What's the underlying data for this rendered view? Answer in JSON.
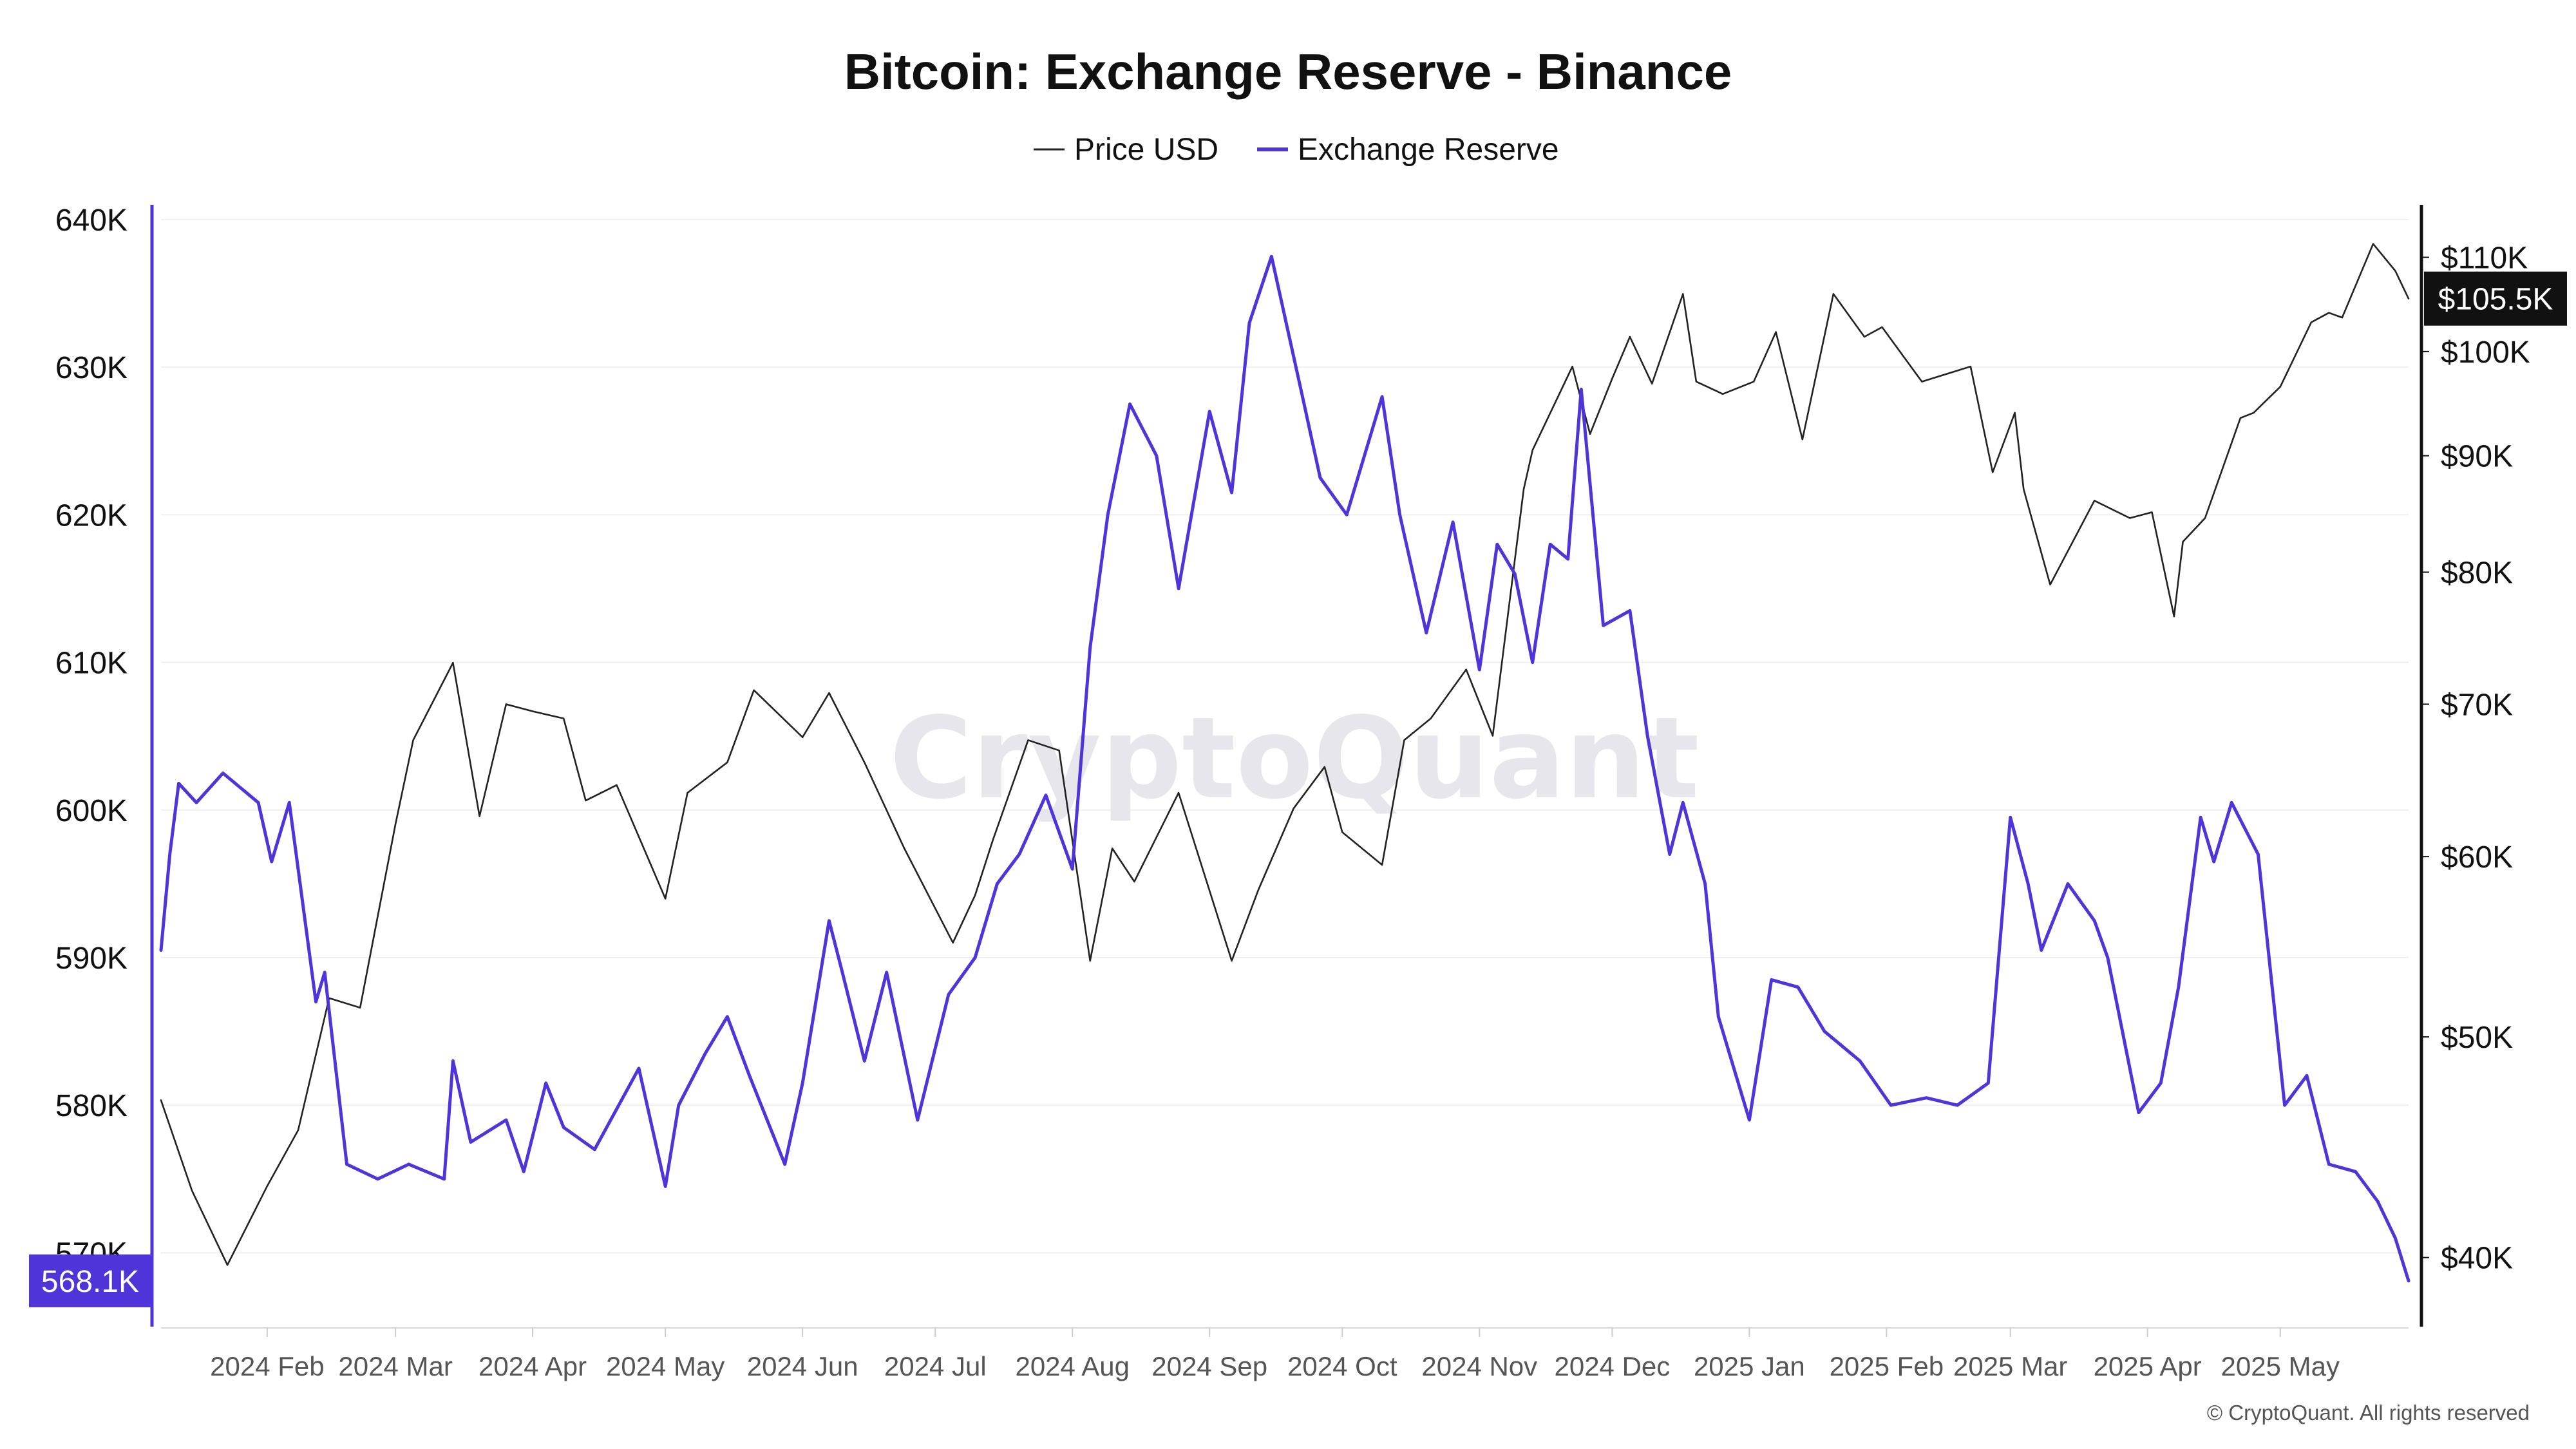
{
  "chart_data": {
    "type": "line",
    "title": "Bitcoin: Exchange Reserve - Binance",
    "watermark": "CryptoQuant",
    "copyright": "© CryptoQuant. All rights reserved",
    "legend": [
      {
        "name": "Price USD",
        "color": "#222222"
      },
      {
        "name": "Exchange Reserve",
        "color": "#4F35D9"
      }
    ],
    "legend_position": "top-center",
    "grid": true,
    "x_ticks": [
      "2024 Feb",
      "2024 Mar",
      "2024 Apr",
      "2024 May",
      "2024 Jun",
      "2024 Jul",
      "2024 Aug",
      "2024 Sep",
      "2024 Oct",
      "2024 Nov",
      "2024 Dec",
      "2025 Jan",
      "2025 Feb",
      "2025 Mar",
      "2025 Apr",
      "2025 May"
    ],
    "x_range": [
      "2024-01-08",
      "2025-05-30"
    ],
    "y_left": {
      "label": "",
      "ticks": [
        "570K",
        "580K",
        "590K",
        "600K",
        "610K",
        "620K",
        "630K",
        "640K"
      ],
      "tick_values": [
        570000,
        580000,
        590000,
        600000,
        610000,
        620000,
        630000,
        640000
      ],
      "range": [
        565000,
        641000
      ],
      "current_label": "568.1K",
      "current_value": 568100
    },
    "y_right": {
      "label": "",
      "scale": "log",
      "ticks": [
        "$40K",
        "$50K",
        "$60K",
        "$70K",
        "$80K",
        "$90K",
        "$100K",
        "$110K"
      ],
      "tick_values": [
        40000,
        50000,
        60000,
        70000,
        80000,
        90000,
        100000,
        110000
      ],
      "range": [
        37300,
        116000
      ],
      "current_label": "$105.5K",
      "current_value": 105500
    },
    "series": [
      {
        "name": "Price USD",
        "axis": "right",
        "color": "#222222",
        "x": [
          "2024-01-08",
          "2024-01-15",
          "2024-01-23",
          "2024-02-01",
          "2024-02-08",
          "2024-02-15",
          "2024-02-22",
          "2024-03-01",
          "2024-03-05",
          "2024-03-14",
          "2024-03-20",
          "2024-03-26",
          "2024-04-01",
          "2024-04-08",
          "2024-04-13",
          "2024-04-20",
          "2024-05-01",
          "2024-05-06",
          "2024-05-15",
          "2024-05-21",
          "2024-06-01",
          "2024-06-07",
          "2024-06-15",
          "2024-06-24",
          "2024-07-05",
          "2024-07-10",
          "2024-07-14",
          "2024-07-22",
          "2024-07-29",
          "2024-08-05",
          "2024-08-10",
          "2024-08-15",
          "2024-08-25",
          "2024-09-06",
          "2024-09-12",
          "2024-09-20",
          "2024-09-27",
          "2024-10-01",
          "2024-10-10",
          "2024-10-15",
          "2024-10-21",
          "2024-10-29",
          "2024-11-04",
          "2024-11-11",
          "2024-11-13",
          "2024-11-22",
          "2024-11-26",
          "2024-12-01",
          "2024-12-05",
          "2024-12-10",
          "2024-12-17",
          "2024-12-20",
          "2024-12-26",
          "2025-01-02",
          "2025-01-07",
          "2025-01-13",
          "2025-01-20",
          "2025-01-27",
          "2025-01-31",
          "2025-02-09",
          "2025-02-20",
          "2025-02-25",
          "2025-03-02",
          "2025-03-04",
          "2025-03-10",
          "2025-03-20",
          "2025-03-28",
          "2025-04-02",
          "2025-04-07",
          "2025-04-09",
          "2025-04-14",
          "2025-04-22",
          "2025-04-25",
          "2025-05-01",
          "2025-05-08",
          "2025-05-12",
          "2025-05-15",
          "2025-05-22",
          "2025-05-27",
          "2025-05-30"
        ],
        "values": [
          46900,
          42800,
          39700,
          43000,
          45500,
          52000,
          51500,
          62000,
          67500,
          73000,
          62500,
          70000,
          69500,
          69000,
          63500,
          64500,
          57500,
          64000,
          66000,
          71000,
          67700,
          70800,
          66000,
          60500,
          55000,
          57700,
          61000,
          67500,
          66800,
          54000,
          60500,
          58500,
          64000,
          54000,
          58000,
          63000,
          65700,
          61500,
          59500,
          67500,
          69000,
          72500,
          67800,
          87000,
          90500,
          98500,
          92000,
          97300,
          101500,
          96800,
          106000,
          97000,
          95800,
          97000,
          102000,
          91500,
          106000,
          101500,
          102500,
          97000,
          98500,
          88500,
          94000,
          87000,
          79000,
          86000,
          84500,
          85000,
          76500,
          82500,
          84500,
          93500,
          94000,
          96500,
          103000,
          104000,
          103500,
          111500,
          108500,
          105500
        ]
      },
      {
        "name": "Exchange Reserve",
        "axis": "left",
        "color": "#4F35D9",
        "x": [
          "2024-01-08",
          "2024-01-10",
          "2024-01-12",
          "2024-01-16",
          "2024-01-22",
          "2024-01-30",
          "2024-02-02",
          "2024-02-06",
          "2024-02-12",
          "2024-02-14",
          "2024-02-19",
          "2024-02-26",
          "2024-03-04",
          "2024-03-12",
          "2024-03-14",
          "2024-03-18",
          "2024-03-26",
          "2024-03-30",
          "2024-04-04",
          "2024-04-08",
          "2024-04-15",
          "2024-04-25",
          "2024-05-01",
          "2024-05-04",
          "2024-05-10",
          "2024-05-15",
          "2024-05-20",
          "2024-05-28",
          "2024-06-01",
          "2024-06-07",
          "2024-06-10",
          "2024-06-15",
          "2024-06-20",
          "2024-06-27",
          "2024-07-04",
          "2024-07-10",
          "2024-07-15",
          "2024-07-20",
          "2024-07-26",
          "2024-08-01",
          "2024-08-05",
          "2024-08-09",
          "2024-08-14",
          "2024-08-20",
          "2024-08-25",
          "2024-09-01",
          "2024-09-06",
          "2024-09-10",
          "2024-09-15",
          "2024-09-22",
          "2024-09-26",
          "2024-10-02",
          "2024-10-10",
          "2024-10-14",
          "2024-10-20",
          "2024-10-26",
          "2024-11-01",
          "2024-11-05",
          "2024-11-09",
          "2024-11-13",
          "2024-11-17",
          "2024-11-21",
          "2024-11-24",
          "2024-11-29",
          "2024-12-05",
          "2024-12-09",
          "2024-12-14",
          "2024-12-17",
          "2024-12-22",
          "2024-12-25",
          "2025-01-01",
          "2025-01-06",
          "2025-01-12",
          "2025-01-18",
          "2025-01-26",
          "2025-02-02",
          "2025-02-10",
          "2025-02-17",
          "2025-02-24",
          "2025-03-01",
          "2025-03-05",
          "2025-03-08",
          "2025-03-14",
          "2025-03-20",
          "2025-03-23",
          "2025-03-30",
          "2025-04-04",
          "2025-04-08",
          "2025-04-13",
          "2025-04-16",
          "2025-04-20",
          "2025-04-26",
          "2025-05-02",
          "2025-05-07",
          "2025-05-12",
          "2025-05-18",
          "2025-05-23",
          "2025-05-27",
          "2025-05-30"
        ],
        "values": [
          590500,
          597000,
          601800,
          600500,
          602500,
          600500,
          596500,
          600500,
          587000,
          589000,
          576000,
          575000,
          576000,
          575000,
          583000,
          577500,
          579000,
          575500,
          581500,
          578500,
          577000,
          582500,
          574500,
          580000,
          583500,
          586000,
          582000,
          576000,
          581500,
          592500,
          589000,
          583000,
          589000,
          579000,
          587500,
          590000,
          595000,
          597000,
          601000,
          596000,
          611000,
          620000,
          627500,
          624000,
          615000,
          627000,
          621500,
          633000,
          637500,
          628000,
          622500,
          620000,
          628000,
          620000,
          612000,
          619500,
          609500,
          618000,
          616000,
          610000,
          618000,
          617000,
          628500,
          612500,
          613500,
          605000,
          597000,
          600500,
          595000,
          586000,
          579000,
          588500,
          588000,
          585000,
          583000,
          580000,
          580500,
          580000,
          581500,
          599500,
          595000,
          590500,
          595000,
          592500,
          590000,
          579500,
          581500,
          588000,
          599500,
          596500,
          600500,
          597000,
          580000,
          582000,
          576000,
          575500,
          573500,
          571000,
          568100
        ]
      }
    ]
  }
}
